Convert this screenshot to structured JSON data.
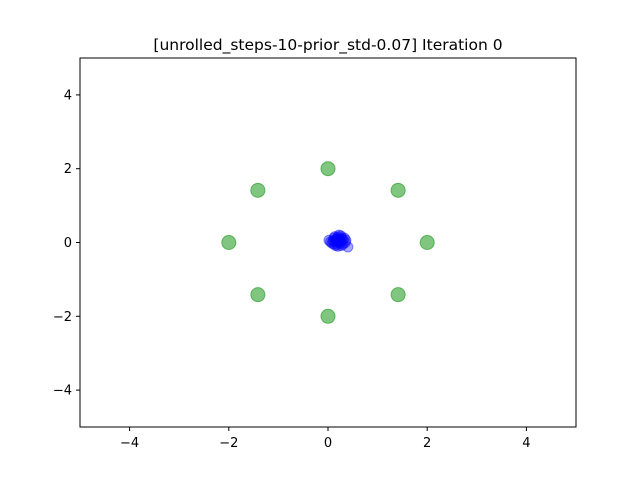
{
  "chart_data": {
    "type": "scatter",
    "title": "[unrolled_steps-10-prior_std-0.07] Iteration 0",
    "xlabel": "",
    "ylabel": "",
    "xlim": [
      -5,
      5
    ],
    "ylim": [
      -5,
      5
    ],
    "xticks": [
      -4,
      -2,
      0,
      2,
      4
    ],
    "yticks": [
      -4,
      -2,
      0,
      2,
      4
    ],
    "xtick_labels": [
      "−4",
      "−2",
      "0",
      "2",
      "4"
    ],
    "ytick_labels": [
      "−4",
      "−2",
      "0",
      "2",
      "4"
    ],
    "grid": false,
    "series": [
      {
        "color": "#2ca02c",
        "alpha": 0.6,
        "points": [
          [
            2.0,
            0.0
          ],
          [
            1.414,
            1.414
          ],
          [
            0.0,
            2.0
          ],
          [
            -1.414,
            1.414
          ],
          [
            -2.0,
            0.0
          ],
          [
            -1.414,
            -1.414
          ],
          [
            0.0,
            -2.0
          ],
          [
            1.414,
            -1.414
          ]
        ]
      },
      {
        "color": "#0000ff",
        "alpha": 0.35,
        "points": [
          [
            0.2,
            0.05
          ],
          [
            0.18,
            0.1
          ],
          [
            0.22,
            0.0
          ],
          [
            0.15,
            0.08
          ],
          [
            0.25,
            0.05
          ],
          [
            0.1,
            0.05
          ],
          [
            0.3,
            0.08
          ],
          [
            0.2,
            0.15
          ],
          [
            0.18,
            -0.05
          ],
          [
            0.25,
            -0.02
          ],
          [
            0.12,
            0.12
          ],
          [
            0.28,
            0.13
          ],
          [
            0.05,
            0.02
          ],
          [
            0.35,
            0.0
          ],
          [
            0.22,
            0.2
          ],
          [
            0.15,
            -0.08
          ],
          [
            0.3,
            -0.05
          ],
          [
            0.08,
            -0.02
          ],
          [
            0.2,
            -0.1
          ],
          [
            0.33,
            0.12
          ],
          [
            0.12,
            -0.04
          ],
          [
            0.26,
            0.18
          ],
          [
            0.17,
            0.02
          ],
          [
            0.23,
            0.09
          ],
          [
            0.4,
            -0.12
          ],
          [
            0.02,
            0.06
          ],
          [
            0.36,
            0.06
          ],
          [
            0.14,
            0.16
          ],
          [
            0.27,
            -0.08
          ],
          [
            0.19,
            0.03
          ]
        ]
      }
    ]
  }
}
